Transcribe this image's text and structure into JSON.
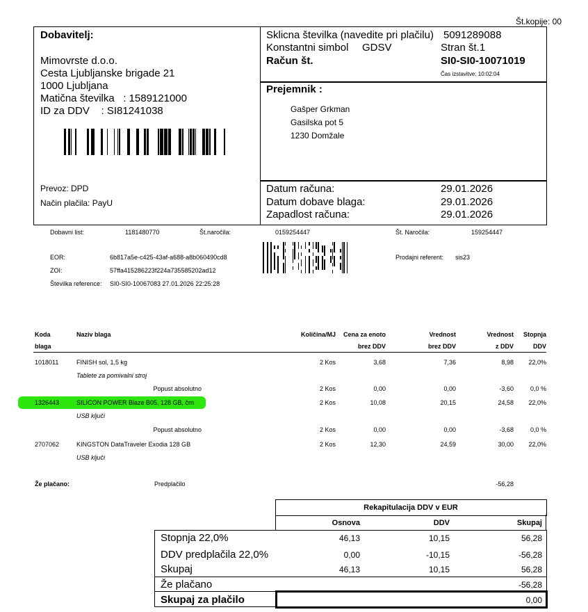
{
  "copies": "Št.kopije: 00",
  "supplier": {
    "heading": "Dobavitelj:",
    "lines": [
      "Mimovrste d.o.o.",
      "Cesta Ljubljanske brigade 21",
      "1000 Ljubljana",
      "Matična številka   : 1589121000",
      "ID za DDV    : SI81241038"
    ],
    "transport": "Prevoz: DPD",
    "payment": "Način plačila: PayU"
  },
  "invoice": {
    "ref_label": "Sklicna številka (navedite pri plačilu)",
    "ref_value": "5091289088",
    "const_label": "Konstantni simbol",
    "const_value": "GDSV",
    "page": "Stran št.1",
    "number_label": "Račun št.",
    "number_value": "SI0-SI0-10071019",
    "issue_time": "Čas izstavitve: 10:02:04"
  },
  "recipient": {
    "heading": "Prejemnik :",
    "lines": [
      "Gašper Grkman",
      "Gasilska pot 5",
      "1230 Domžale"
    ]
  },
  "dates": [
    {
      "label": "Datum računa:",
      "value": "29.01.2026"
    },
    {
      "label": "Datum dobave blaga:",
      "value": "29.01.2026"
    },
    {
      "label": "Zapadlost računa:",
      "value": "29.01.2026"
    }
  ],
  "meta": {
    "delivery_label": "Dobavni list:",
    "delivery_value": "1181480770",
    "order_label": "Št.naročila:",
    "order_value": "0159254447",
    "order2_label": "Št. Naročila:",
    "order2_value": "159254447",
    "eor_label": "EOR:",
    "eor_value": "6b817a5e-c425-43af-a688-a8b060490cd8",
    "zoi_label": "ZOI:",
    "zoi_value": "57ffa415286223f224a735585202ad12",
    "ref_label": "Številka reference:",
    "ref_value": "SI0-SI0-10067083 27.01.2026 22:25:28",
    "seller_label": "Prodajni referent:",
    "seller_value": "sis23"
  },
  "table": {
    "headers": [
      [
        "Koda",
        "blaga"
      ],
      [
        "Naziv blaga",
        ""
      ],
      [
        "Količina/MJ",
        ""
      ],
      [
        "Cena za enoto",
        "brez DDV"
      ],
      [
        "Vrednost",
        "brez DDV"
      ],
      [
        "Vrednost",
        "z DDV"
      ],
      [
        "Stopnja",
        "DDV"
      ]
    ],
    "rows": [
      {
        "code": "1018011",
        "name": "FINISH sol, 1,5 kg",
        "qty": "2 Kos",
        "price": "3,68",
        "net": "7,36",
        "gross": "8,98",
        "rate": "22,0%"
      },
      {
        "sub": "Tablete za pomivalni stroj"
      },
      {
        "discount": "Popust absolutno",
        "qty": "2 Kos",
        "price": "0,00",
        "net": "0,00",
        "gross": "-3,60",
        "rate": "0,0 %"
      },
      {
        "code": "1326443",
        "name": "SILICON POWER Blaze B05, 128 GB, črn",
        "qty": "2 Kos",
        "price": "10,08",
        "net": "20,15",
        "gross": "24,58",
        "rate": "22,0%",
        "highlight": true
      },
      {
        "sub": "USB ključi"
      },
      {
        "discount": "Popust absolutno",
        "qty": "2 Kos",
        "price": "0,00",
        "net": "0,00",
        "gross": "-3,68",
        "rate": "0,0 %"
      },
      {
        "code": "2707062",
        "name": "KINGSTON DataTraveler Exodia 128 GB",
        "qty": "2 Kos",
        "price": "12,30",
        "net": "24,59",
        "gross": "30,00",
        "rate": "22,0%"
      },
      {
        "sub": "USB ključi"
      }
    ],
    "prepaid_label": "Že plačano:",
    "prepaid_desc": "Predplačilo",
    "prepaid_value": "-56,28"
  },
  "recap": {
    "title": "Rekapitulacija DDV v EUR",
    "headers": [
      "Osnova",
      "DDV",
      "Skupaj"
    ],
    "rows": [
      {
        "label": "Stopnja 22,0%",
        "base": "46,13",
        "vat": "10,15",
        "total": "56,28"
      },
      {
        "label": "DDV predplačila 22,0%",
        "base": "0,00",
        "vat": "-10,15",
        "total": "-56,28"
      },
      {
        "label": "Skupaj",
        "base": "46,13",
        "vat": "10,15",
        "total": "56,28"
      }
    ],
    "paid_label": "Že plačano",
    "paid_value": "-56,28",
    "due_label": "Skupaj za plačilo",
    "due_value": "0,00"
  },
  "colors": {
    "highlight": "#2ee60e"
  }
}
